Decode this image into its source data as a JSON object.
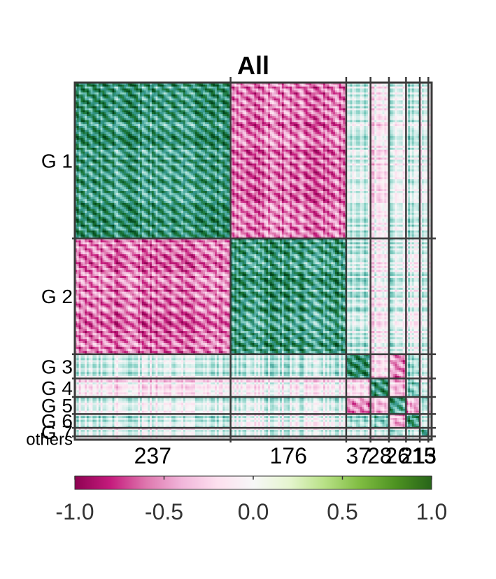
{
  "chart_data": {
    "type": "heatmap",
    "title": "All",
    "xlabel": "",
    "ylabel": "",
    "groups": [
      {
        "label": "G 1",
        "size": 237,
        "size_label": "237"
      },
      {
        "label": "G 2",
        "size": 176,
        "size_label": "176"
      },
      {
        "label": "G 3",
        "size": 37,
        "size_label": "37"
      },
      {
        "label": "G 4",
        "size": 28,
        "size_label": "28"
      },
      {
        "label": "G 5",
        "size": 26,
        "size_label": "26"
      },
      {
        "label": "G 6",
        "size": 21,
        "size_label": "21"
      },
      {
        "label": "G 7",
        "size": 13,
        "size_label": "13"
      },
      {
        "label": "others",
        "size": 5,
        "size_label": "5"
      }
    ],
    "block_mean": [
      [
        0.8,
        -0.8,
        0.1,
        -0.2,
        0.1,
        0.2,
        0.0,
        0.1
      ],
      [
        -0.8,
        0.8,
        0.2,
        -0.1,
        0.2,
        0.0,
        0.1,
        0.1
      ],
      [
        0.1,
        0.2,
        0.8,
        -0.3,
        -0.7,
        0.3,
        0.0,
        0.1
      ],
      [
        -0.2,
        -0.1,
        -0.3,
        0.9,
        -0.4,
        0.5,
        0.1,
        0.0
      ],
      [
        0.1,
        0.2,
        -0.7,
        -0.4,
        0.8,
        -0.5,
        0.3,
        0.0
      ],
      [
        0.2,
        0.0,
        0.3,
        0.5,
        -0.5,
        0.8,
        0.1,
        0.2
      ],
      [
        0.0,
        0.1,
        0.0,
        0.1,
        0.3,
        0.1,
        0.6,
        0.1
      ],
      [
        0.1,
        0.1,
        0.1,
        0.0,
        0.0,
        0.2,
        0.1,
        0.5
      ]
    ],
    "colorbar": {
      "range": [
        -1.0,
        1.0
      ],
      "ticks": [
        -1.0,
        -0.5,
        0.0,
        0.5,
        1.0
      ],
      "tick_labels": [
        "-1.0",
        "-0.5",
        "0.0",
        "0.5",
        "1.0"
      ],
      "colormap": "PiYG",
      "low_color": "#8e0152",
      "mid_color": "#f7f7f7",
      "high_color": "#276419"
    },
    "grid": true,
    "legend": "colorbar-bottom"
  }
}
